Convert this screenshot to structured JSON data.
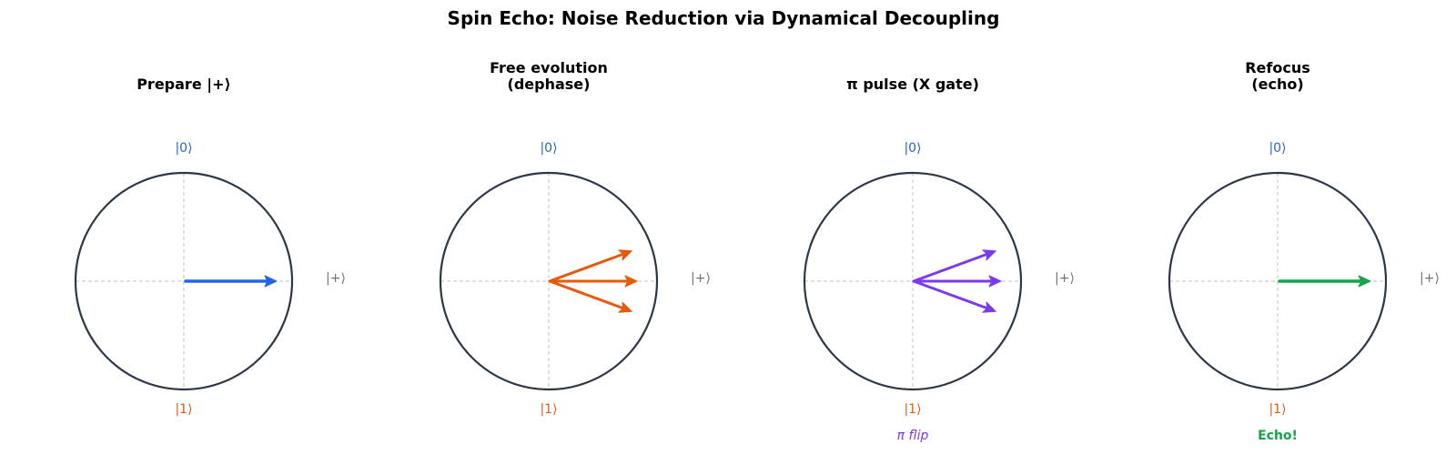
{
  "title": "Spin Echo: Noise Reduction via Dynamical Decoupling",
  "colors": {
    "circle": "#2d3748",
    "axis": "#c0c0c0",
    "ket0": "#2563c9",
    "ket1": "#e05a12",
    "ketplus": "#6b7280",
    "blue": "#2563eb",
    "orange": "#e8590c",
    "purple": "#7c3aed",
    "green": "#16a34a"
  },
  "labels": {
    "ket0": "|0⟩",
    "ket1": "|1⟩",
    "ketplus": "|+⟩"
  },
  "panels": [
    {
      "title_lines": [
        "Prepare |+⟩"
      ],
      "arrow_color": "blue",
      "arrow_angles_deg": [
        0
      ],
      "caption": "",
      "caption_style": ""
    },
    {
      "title_lines": [
        "Free evolution",
        "(dephase)"
      ],
      "arrow_color": "orange",
      "arrow_angles_deg": [
        20,
        0,
        -20
      ],
      "caption": "",
      "caption_style": ""
    },
    {
      "title_lines": [
        "π pulse (X gate)"
      ],
      "arrow_color": "purple",
      "arrow_angles_deg": [
        20,
        0,
        -20
      ],
      "caption": "π flip",
      "caption_style": "italic"
    },
    {
      "title_lines": [
        "Refocus",
        "(echo)"
      ],
      "arrow_color": "green",
      "arrow_angles_deg": [
        0
      ],
      "caption": "Echo!",
      "caption_style": "bold"
    }
  ]
}
